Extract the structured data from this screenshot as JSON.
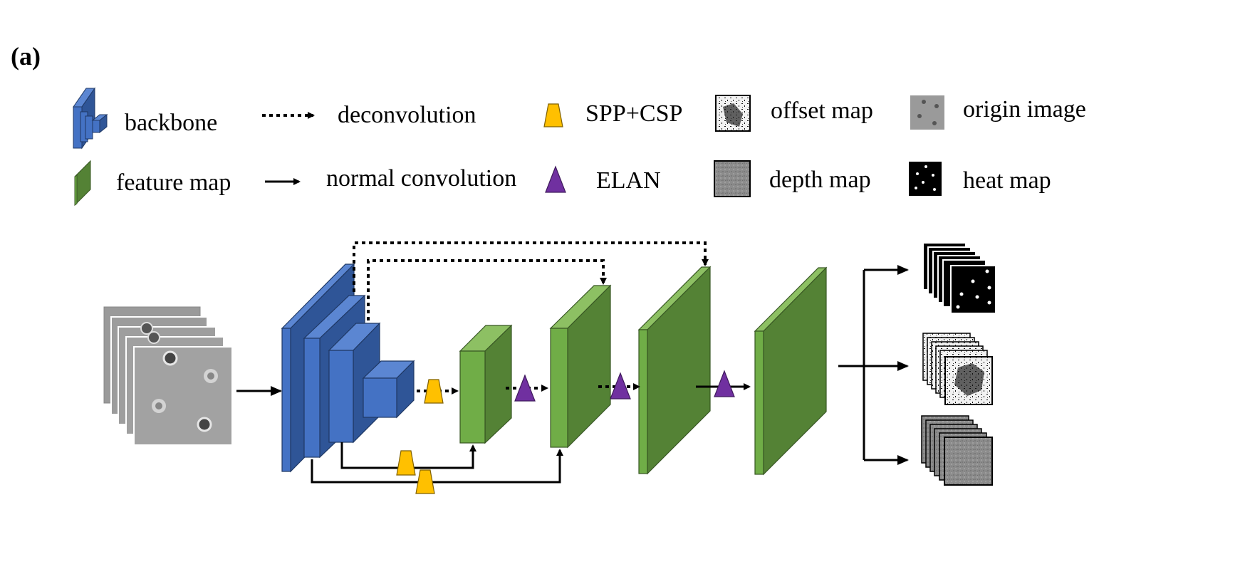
{
  "panel_label": "(a)",
  "legend": {
    "backbone": "backbone",
    "feature_map": "feature map",
    "deconvolution": "deconvolution",
    "normal_convolution": "normal convolution",
    "spp_csp": "SPP+CSP",
    "elan": "ELAN",
    "offset_map": "offset map",
    "depth_map": "depth map",
    "origin_image": "origin image",
    "heat_map": "heat map"
  },
  "colors": {
    "backbone_front": "#4472C4",
    "backbone_top": "#5B86D2",
    "backbone_side": "#2F5597",
    "backbone_edge": "#1F3864",
    "feature_front": "#70AD47",
    "feature_top": "#8DC063",
    "feature_side": "#548235",
    "feature_edge": "#375623",
    "spp": "#FFC000",
    "elan": "#7030A0"
  }
}
